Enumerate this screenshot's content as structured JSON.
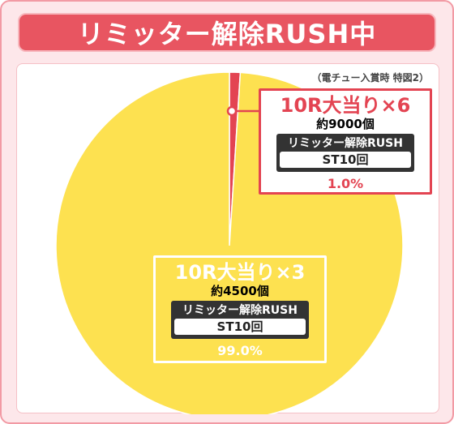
{
  "header": {
    "title": "リミッター解除RUSH中"
  },
  "note": "（電チュー入賞時 特図2）",
  "colors": {
    "major": "#fde150",
    "minor": "#e34452",
    "frame": "#fde7ea",
    "title_bg": "#e85561"
  },
  "chart_data": {
    "type": "pie",
    "title": "リミッター解除RUSH中",
    "slices": [
      {
        "label": "10R大当り×6",
        "value": 1.0
      },
      {
        "label": "10R大当り×3",
        "value": 99.0
      }
    ]
  },
  "labels": {
    "minor": {
      "head": "10R大当り×6",
      "payout": "約9000個",
      "mode": "リミッター解除RUSH",
      "st": "ST10回",
      "pct": "1.0%"
    },
    "major": {
      "head": "10R大当り×3",
      "payout": "約4500個",
      "mode": "リミッター解除RUSH",
      "st": "ST10回",
      "pct": "99.0%"
    }
  }
}
